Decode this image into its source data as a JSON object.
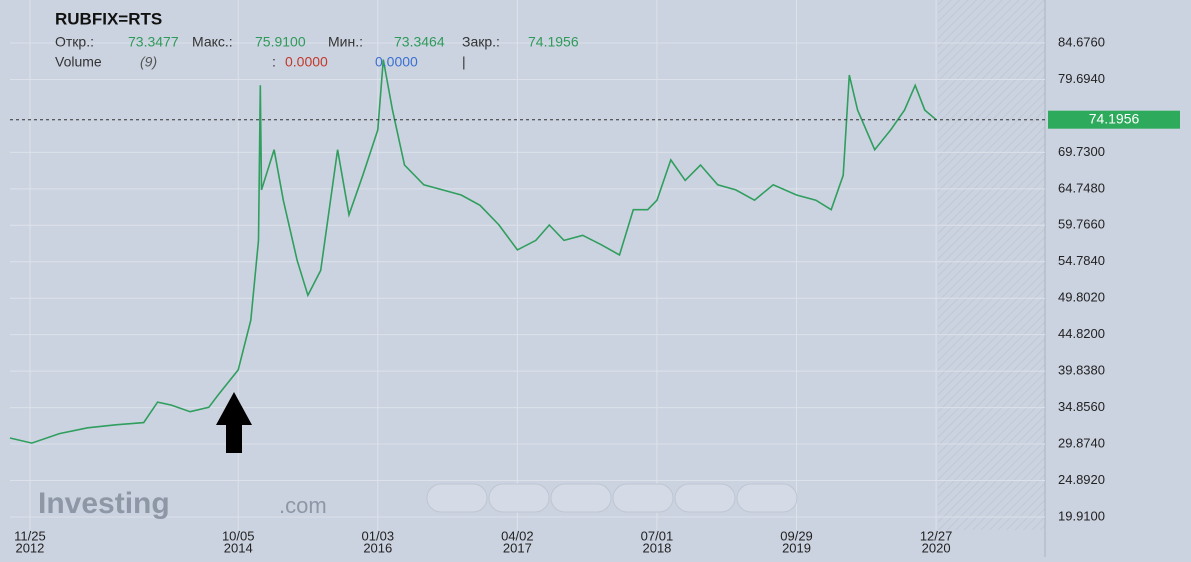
{
  "header": {
    "symbol": "RUBFIX=RTS",
    "ohlc": [
      {
        "label": "Откр.:",
        "value": "73.3477"
      },
      {
        "label": "Макс.:",
        "value": "75.9100"
      },
      {
        "label": "Мин.:",
        "value": "73.3464"
      },
      {
        "label": "Закр.:",
        "value": "74.1956"
      }
    ],
    "volume": {
      "label": "Volume",
      "period": "(9)",
      "separator": ":",
      "value_a": "0.0000",
      "value_b": "0.0000",
      "cursor": "|"
    }
  },
  "logo": {
    "brand": "Investing",
    "suffix": ".com"
  },
  "chart_data": {
    "type": "line",
    "x": [
      "2012-09-21",
      "2012-12-01",
      "2013-03-01",
      "2013-06-01",
      "2013-09-01",
      "2013-12-01",
      "2014-01-15",
      "2014-03-01",
      "2014-05-01",
      "2014-07-01",
      "2014-08-01",
      "2014-10-05",
      "2014-11-15",
      "2014-12-10",
      "2014-12-16",
      "2014-12-20",
      "2015-01-30",
      "2015-03-01",
      "2015-04-15",
      "2015-05-20",
      "2015-07-01",
      "2015-08-25",
      "2015-10-01",
      "2015-11-15",
      "2016-01-03",
      "2016-01-21",
      "2016-02-20",
      "2016-03-30",
      "2016-06-01",
      "2016-08-01",
      "2016-10-01",
      "2016-12-01",
      "2017-02-01",
      "2017-04-02",
      "2017-06-01",
      "2017-07-15",
      "2017-09-01",
      "2017-11-01",
      "2018-01-01",
      "2018-03-01",
      "2018-04-15",
      "2018-06-01",
      "2018-07-01",
      "2018-08-15",
      "2018-10-01",
      "2018-11-20",
      "2019-01-15",
      "2019-03-15",
      "2019-05-15",
      "2019-07-15",
      "2019-09-29",
      "2019-12-01",
      "2020-01-20",
      "2020-02-28",
      "2020-03-19",
      "2020-04-15",
      "2020-06-10",
      "2020-08-01",
      "2020-09-15",
      "2020-10-20",
      "2020-11-20",
      "2020-12-27"
    ],
    "series": [
      {
        "name": "RUBFIX=RTS",
        "color": "#2f9e5e",
        "values": [
          30.7,
          30.0,
          31.3,
          32.1,
          32.5,
          32.8,
          35.6,
          35.2,
          34.3,
          34.9,
          36.6,
          40.0,
          46.8,
          57.7,
          78.9,
          64.6,
          70.1,
          63.2,
          55.0,
          50.2,
          53.6,
          70.1,
          61.2,
          66.6,
          72.8,
          82.4,
          75.5,
          68.0,
          65.3,
          64.6,
          63.9,
          62.5,
          59.8,
          56.4,
          57.7,
          59.8,
          57.7,
          58.4,
          57.1,
          55.7,
          61.9,
          61.9,
          63.2,
          68.7,
          65.9,
          68.0,
          65.3,
          64.6,
          63.2,
          65.3,
          63.9,
          63.2,
          61.9,
          66.6,
          80.3,
          75.5,
          70.1,
          72.8,
          75.5,
          78.9,
          75.5,
          74.1956
        ]
      }
    ],
    "last_price": {
      "value": 74.1956,
      "label": "74.1956"
    },
    "xlim": [
      "2012-09-21",
      "2021-12-17"
    ],
    "xticks": [
      {
        "value": "2012-11-25",
        "label": "11/25"
      },
      {
        "value": "2014-10-05",
        "label": "10/05"
      },
      {
        "value": "2016-01-03",
        "label": "01/03"
      },
      {
        "value": "2017-04-02",
        "label": "04/02"
      },
      {
        "value": "2018-07-01",
        "label": "07/01"
      },
      {
        "value": "2019-09-29",
        "label": "09/29"
      },
      {
        "value": "2020-12-27",
        "label": "12/27"
      }
    ],
    "xtick_years": [
      "2012",
      "2014",
      "2016",
      "2017",
      "2018",
      "2019",
      "2020"
    ],
    "ylim": [
      18.13,
      90.55
    ],
    "yticks": [
      {
        "value": 19.91,
        "label": "19.9100"
      },
      {
        "value": 24.892,
        "label": "24.8920"
      },
      {
        "value": 29.874,
        "label": "29.8740"
      },
      {
        "value": 34.856,
        "label": "34.8560"
      },
      {
        "value": 39.838,
        "label": "39.8380"
      },
      {
        "value": 44.82,
        "label": "44.8200"
      },
      {
        "value": 49.802,
        "label": "49.8020"
      },
      {
        "value": 54.784,
        "label": "54.7840"
      },
      {
        "value": 59.766,
        "label": "59.7660"
      },
      {
        "value": 64.748,
        "label": "64.7480"
      },
      {
        "value": 69.73,
        "label": "69.7300"
      },
      {
        "value": 79.694,
        "label": "79.6940"
      },
      {
        "value": 84.676,
        "label": "84.6760"
      }
    ],
    "grid": true
  }
}
